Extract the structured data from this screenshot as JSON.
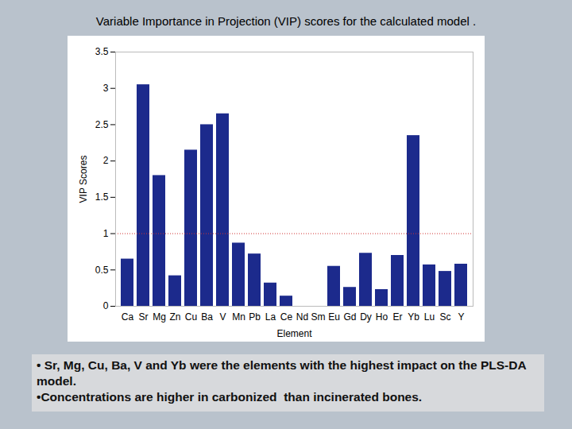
{
  "chart_data": {
    "type": "bar",
    "title": "Variable Importance in Projection (VIP) scores for the calculated model .",
    "x_label": "Element",
    "y_label": "VIP Scores",
    "categories": [
      "Ca",
      "Sr",
      "Mg",
      "Zn",
      "Cu",
      "Ba",
      "V",
      "Mn",
      "Pb",
      "La",
      "Ce",
      "Nd",
      "Sm",
      "Eu",
      "Gd",
      "Dy",
      "Ho",
      "Er",
      "Yb",
      "Lu",
      "Sc",
      "Y"
    ],
    "values": [
      0.65,
      3.05,
      1.8,
      0.42,
      2.15,
      2.5,
      2.65,
      0.87,
      0.72,
      0.32,
      0.14,
      0,
      0,
      0.55,
      0.26,
      0.73,
      0.23,
      0.7,
      2.35,
      0.57,
      0.48,
      0.58
    ],
    "color": "#1c2a8c",
    "ylim": [
      0,
      3.5
    ],
    "yticks": [
      0,
      0.5,
      1,
      1.5,
      2,
      2.5,
      3,
      3.5
    ],
    "grid": false,
    "reference_line": 1,
    "annotations": [
      "• Sr, Mg, Cu, Ba, V and Yb were the elements with the highest impact on the PLS-DA model.",
      "•Concentrations are higher in carbonized  than incinerated bones."
    ]
  }
}
